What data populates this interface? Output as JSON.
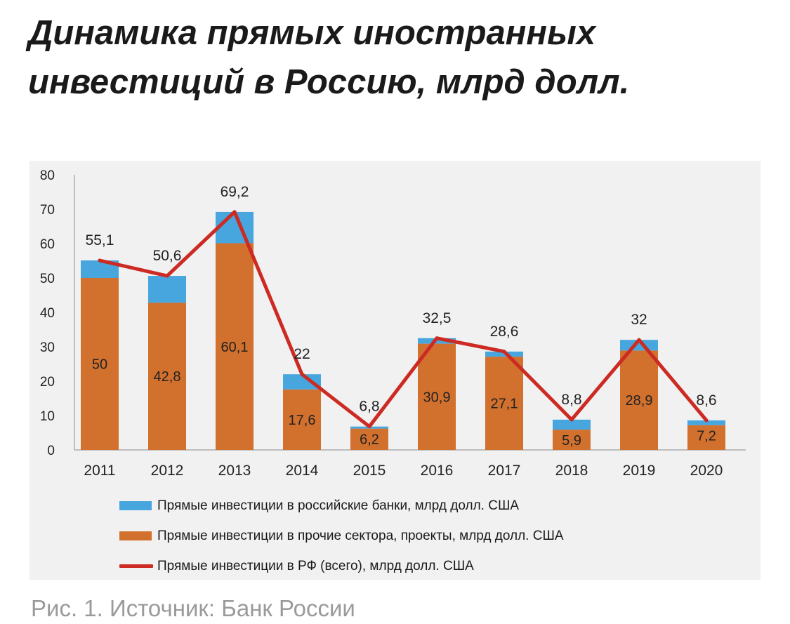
{
  "headline": "Динамика прямых иностранных инвестиций в Россию, млрд долл.",
  "caption": "Рис. 1. Источник: Банк России",
  "colors": {
    "banks": "#46a6dd",
    "other": "#d2702d",
    "total": "#cc2a22",
    "panel": "#f1f1f1",
    "axis": "#8a8a8a"
  },
  "chart_data": {
    "type": "bar",
    "stacked": true,
    "categories": [
      "2011",
      "2012",
      "2013",
      "2014",
      "2015",
      "2016",
      "2017",
      "2018",
      "2019",
      "2020"
    ],
    "ylim": [
      0,
      80
    ],
    "yticks": [
      0,
      10,
      20,
      30,
      40,
      50,
      60,
      70,
      80
    ],
    "grid": false,
    "legend_position": "bottom",
    "series": [
      {
        "name": "Прямые инвестиции в прочие сектора, проекты, млрд долл. США",
        "kind": "bar",
        "values": [
          50,
          42.8,
          60.1,
          17.6,
          6.2,
          30.9,
          27.1,
          5.9,
          28.9,
          7.2
        ],
        "labels": [
          "50",
          "42,8",
          "60,1",
          "17,6",
          "6,2",
          "30,9",
          "27,1",
          "5,9",
          "28,9",
          "7,2"
        ]
      },
      {
        "name": "Прямые инвестиции в российские банки, млрд долл. США",
        "kind": "bar",
        "values": [
          5.1,
          7.8,
          9.1,
          4.4,
          0.6,
          1.6,
          1.5,
          2.9,
          3.1,
          1.4
        ]
      },
      {
        "name": "Прямые инвестиции в РФ (всего), млрд долл. США",
        "kind": "line",
        "values": [
          55.1,
          50.6,
          69.2,
          22,
          6.8,
          32.5,
          28.6,
          8.8,
          32,
          8.6
        ],
        "labels": [
          "55,1",
          "50,6",
          "69,2",
          "22",
          "6,8",
          "32,5",
          "28,6",
          "8,8",
          "32",
          "8,6"
        ]
      }
    ],
    "legend": [
      "Прямые инвестиции в российские банки, млрд долл. США",
      "Прямые инвестиции в прочие сектора, проекты, млрд долл. США",
      "Прямые инвестиции в РФ (всего), млрд долл. США"
    ]
  }
}
